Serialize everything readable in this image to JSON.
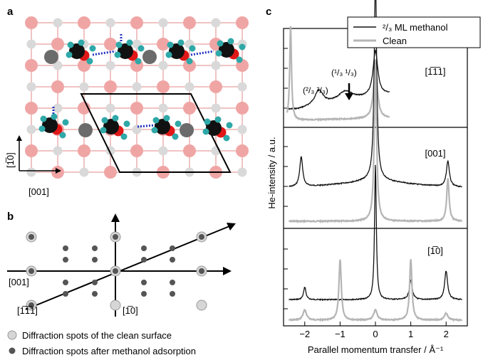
{
  "panels": {
    "a": "a",
    "b": "b",
    "c": "c"
  },
  "panel_a": {
    "axis_vertical": "[1̅0]",
    "axis_horizontal": "[001]"
  },
  "panel_b": {
    "dir_001": "[001]",
    "dir_1m11": "[1̅1̅1]",
    "dir_1m10": "[1̅0]",
    "legend": [
      {
        "label": "Diffraction spots of the clean surface",
        "color": "#d6d6d6"
      },
      {
        "label": "Diffraction spots after methanol adsorption",
        "color": "#555555"
      }
    ]
  },
  "chart_data": {
    "type": "line",
    "ylabel": "He-intensity / a.u.",
    "xlabel": "Parallel momentum transfer / Å⁻¹",
    "x_ticks": [
      "−2",
      "−1",
      "0",
      "1",
      "2"
    ],
    "xlim": [
      -2.6,
      2.6
    ],
    "legend": [
      {
        "name": "²/₃ ML methanol",
        "color": "#111111"
      },
      {
        "name": "Clean",
        "color": "#b5b5b5"
      }
    ],
    "subpanels": [
      {
        "direction": "[1̅1̅1]",
        "annotations": [
          "(²/₃ ²/₃)",
          "(¹/₃ ¹/₃)"
        ],
        "peaks": {
          "methanol": [
            -1.6,
            -0.85,
            0
          ],
          "clean": [
            -2.4,
            0
          ]
        }
      },
      {
        "direction": "[001]",
        "peaks": {
          "methanol": [
            -2.1,
            0,
            2.05
          ],
          "clean": [
            0,
            2.05
          ]
        }
      },
      {
        "direction": "[1̅0]",
        "peaks": {
          "methanol": [
            -2,
            0,
            1,
            2
          ],
          "clean": [
            -2,
            -1,
            0,
            1,
            2
          ]
        }
      }
    ]
  },
  "colors": {
    "oxide_red": "#f0a5a5",
    "oxide_grey": "#d9d9d9",
    "carbon": "#111111",
    "oxygen": "#e01818",
    "hydrogen": "#2fa8a8"
  }
}
